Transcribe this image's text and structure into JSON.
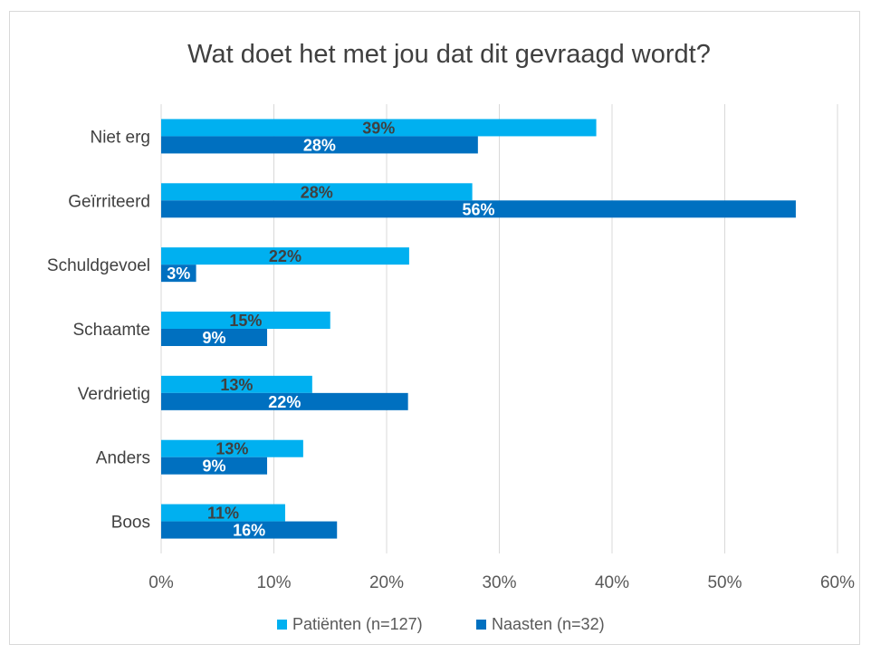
{
  "chart_data": {
    "type": "bar",
    "orientation": "horizontal",
    "title": "Wat doet het met jou dat dit gevraagd wordt?",
    "categories": [
      "Niet erg",
      "Geïrriteerd",
      "Schuldgevoel",
      "Schaamte",
      "Verdrietig",
      "Anders",
      "Boos"
    ],
    "series": [
      {
        "name": "Patiënten (n=127)",
        "color": "#00b0f0",
        "values": [
          38.6,
          27.6,
          22.0,
          15.0,
          13.4,
          12.6,
          11.0
        ],
        "labels": [
          "39%",
          "28%",
          "22%",
          "15%",
          "13%",
          "13%",
          "11%"
        ]
      },
      {
        "name": "Naasten (n=32)",
        "color": "#0070c0",
        "values": [
          28.1,
          56.3,
          3.1,
          9.4,
          21.9,
          9.4,
          15.6
        ],
        "labels": [
          "28%",
          "56%",
          "3%",
          "9%",
          "22%",
          "9%",
          "16%"
        ]
      }
    ],
    "xlim": [
      0,
      60
    ],
    "xticks": [
      0,
      10,
      20,
      30,
      40,
      50,
      60
    ],
    "xtick_labels": [
      "0%",
      "10%",
      "20%",
      "30%",
      "40%",
      "50%",
      "60%"
    ],
    "grid": true,
    "legend_position": "bottom"
  }
}
